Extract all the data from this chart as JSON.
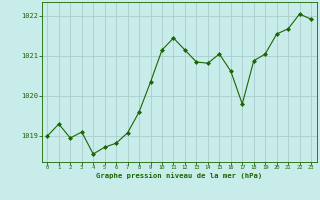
{
  "x": [
    0,
    1,
    2,
    3,
    4,
    5,
    6,
    7,
    8,
    9,
    10,
    11,
    12,
    13,
    14,
    15,
    16,
    17,
    18,
    19,
    20,
    21,
    22,
    23
  ],
  "y": [
    1019.0,
    1019.3,
    1018.95,
    1019.1,
    1018.55,
    1018.72,
    1018.82,
    1019.08,
    1019.6,
    1020.35,
    1021.15,
    1021.45,
    1021.15,
    1020.85,
    1020.82,
    1021.05,
    1020.62,
    1019.8,
    1020.88,
    1021.05,
    1021.55,
    1021.68,
    1022.05,
    1021.92
  ],
  "line_color": "#1a6600",
  "marker_color": "#1a6600",
  "bg_color": "#c8ecea",
  "grid_color": "#aacece",
  "xlabel": "Graphe pression niveau de la mer (hPa)",
  "xlabel_color": "#1a6600",
  "tick_color": "#1a6600",
  "ylim_min": 1018.35,
  "ylim_max": 1022.35,
  "yticks": [
    1019,
    1020,
    1021,
    1022
  ],
  "xticks": [
    0,
    1,
    2,
    3,
    4,
    5,
    6,
    7,
    8,
    9,
    10,
    11,
    12,
    13,
    14,
    15,
    16,
    17,
    18,
    19,
    20,
    21,
    22,
    23
  ],
  "figsize": [
    3.2,
    2.0
  ],
  "dpi": 100
}
